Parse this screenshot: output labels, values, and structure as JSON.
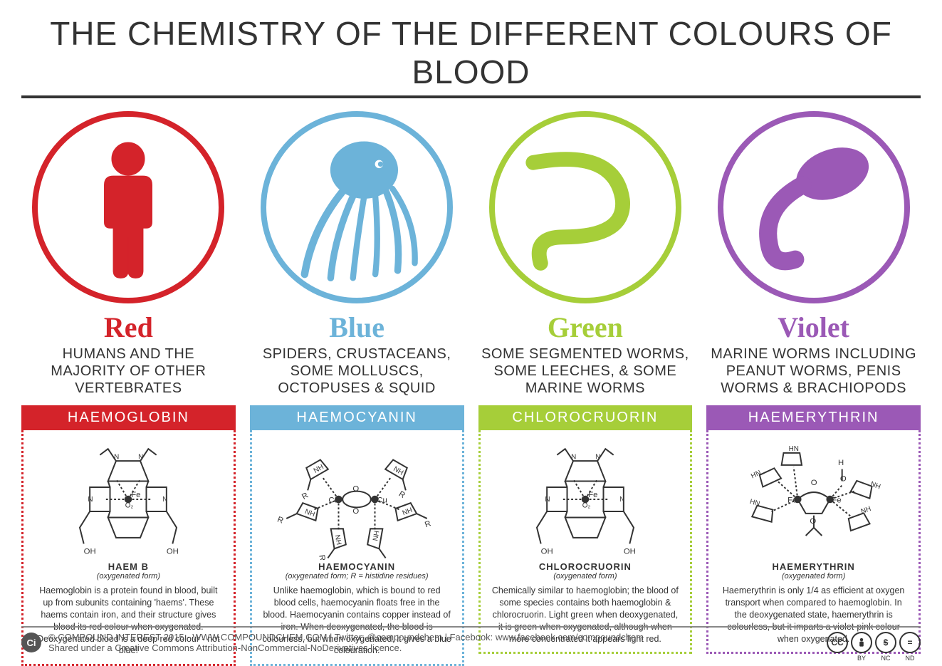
{
  "title": "THE CHEMISTRY OF THE DIFFERENT COLOURS OF BLOOD",
  "columns": [
    {
      "color_name": "Red",
      "color_hex": "#d4232a",
      "icon": "human",
      "examples": "HUMANS AND THE MAJORITY OF OTHER VERTEBRATES",
      "compound": "HAEMOGLOBIN",
      "structure_name": "HAEM B",
      "structure_sub": "(oxygenated form)",
      "description": "Haemoglobin is a protein found in blood, built up from subunits containing 'haems'. These haems contain iron, and their structure gives blood its red colour when oxygenated. Deoxygenated blood is a deep red colour - not blue!"
    },
    {
      "color_name": "Blue",
      "color_hex": "#6cb3d9",
      "icon": "octopus",
      "examples": "SPIDERS, CRUSTACEANS, SOME MOLLUSCS, OCTOPUSES & SQUID",
      "compound": "HAEMOCYANIN",
      "structure_name": "HAEMOCYANIN",
      "structure_sub": "(oxygenated form; R = histidine residues)",
      "description": "Unlike haemoglobin, which is bound to red blood cells, haemocyanin floats free in the blood. Haemocyanin contains copper instead of iron. When deoxygenated, the blood is colourless, but when oxygenated, it gives a blue colouration."
    },
    {
      "color_name": "Green",
      "color_hex": "#a6ce39",
      "icon": "worm",
      "examples": "SOME SEGMENTED WORMS, SOME LEECHES, & SOME MARINE WORMS",
      "compound": "CHLOROCRUORIN",
      "structure_name": "CHLOROCRUORIN",
      "structure_sub": "(oxygenated form)",
      "description": "Chemically similar to haemoglobin; the blood of some species contains both haemoglobin & chlorocruorin. Light green when deoxygenated, it is green when oxygenated, although when more concentrated it appears light red."
    },
    {
      "color_name": "Violet",
      "color_hex": "#9b59b6",
      "icon": "peanut-worm",
      "examples": "MARINE WORMS INCLUDING PEANUT WORMS, PENIS WORMS & BRACHIOPODS",
      "compound": "HAEMERYTHRIN",
      "structure_name": "HAEMERYTHRIN",
      "structure_sub": "(oxygenated form)",
      "description": "Haemerythrin is only 1/4 as efficient at oxygen transport when compared to haemoglobin. In the deoxygenated state, haemerythrin is colourless, but it imparts a violet-pink colour when oxygenated."
    }
  ],
  "footer": {
    "line1": "© COMPOUND INTEREST 2015 - WWW.COMPOUNDCHEM.COM  |  Twitter: @compoundchem  |  Facebook: www.facebook.com/compoundchem",
    "line2": "Shared under a Creative Commons Attribution-NonCommercial-NoDerivatives licence.",
    "cc": [
      "CC",
      "BY",
      "NC",
      "ND"
    ],
    "badge": "Ci"
  },
  "style": {
    "background": "#ffffff",
    "title_color": "#333333",
    "title_fontsize": 46,
    "circle_diameter": 270,
    "circle_border_width": 8,
    "color_name_fontsize": 40,
    "examples_fontsize": 20,
    "compound_bar_fontsize": 20,
    "struct_name_fontsize": 13,
    "struct_sub_fontsize": 11,
    "desc_fontsize": 12.5,
    "structure_line_color": "#333333"
  }
}
